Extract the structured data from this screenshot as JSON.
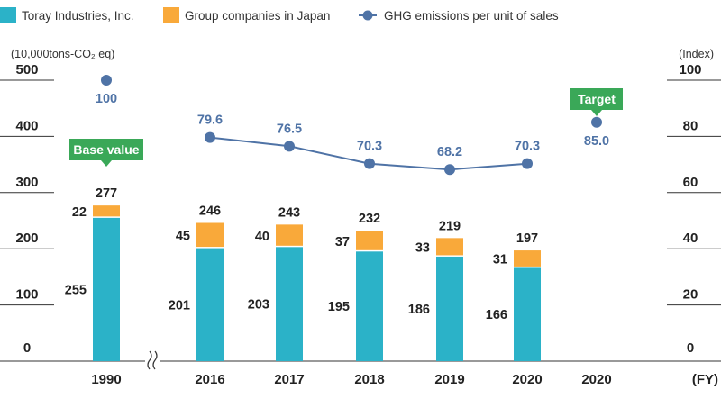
{
  "chart_data": {
    "type": "bar",
    "stacked": true,
    "categories": [
      "1990",
      "2016",
      "2017",
      "2018",
      "2019",
      "2020",
      "2020"
    ],
    "series": [
      {
        "name": "Toray Industries, Inc.",
        "type": "bar",
        "color": "#2bb2c8",
        "values": [
          255,
          201,
          203,
          195,
          186,
          166,
          null
        ]
      },
      {
        "name": "Group companies in Japan",
        "type": "bar",
        "color": "#f9a93a",
        "values": [
          22,
          45,
          40,
          37,
          33,
          31,
          null
        ]
      },
      {
        "name": "GHG emissions per unit of sales",
        "type": "line",
        "axis": "right",
        "color": "#4f73a6",
        "values": [
          100,
          79.6,
          76.5,
          70.3,
          68.2,
          70.3,
          85.0
        ],
        "labels": [
          "100",
          "79.6",
          "76.5",
          "70.3",
          "68.2",
          "70.3",
          "85.0"
        ]
      }
    ],
    "totals": [
      277,
      246,
      243,
      232,
      219,
      197,
      null
    ],
    "y_left": {
      "label": "(10,000tons-CO₂ eq)",
      "range": [
        0,
        500
      ],
      "ticks": [
        "0",
        "100",
        "200",
        "300",
        "400",
        "500"
      ]
    },
    "y_right": {
      "label": "(Index)",
      "range": [
        0,
        100
      ],
      "ticks": [
        "0",
        "20",
        "40",
        "60",
        "80",
        "100"
      ]
    },
    "xlabel": "(FY)",
    "annotations": [
      {
        "text": "Base value",
        "category_index": 0,
        "color": "#3aa858"
      },
      {
        "text": "Target",
        "category_index": 6,
        "color": "#3aa858"
      }
    ]
  }
}
